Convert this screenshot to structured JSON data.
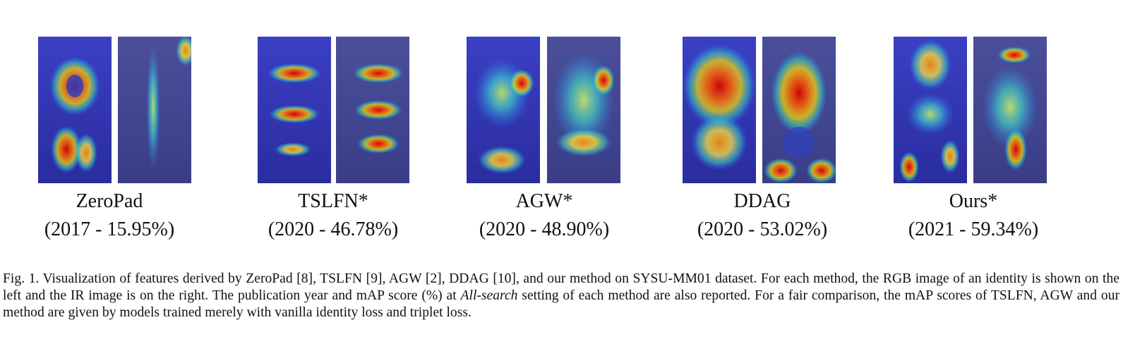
{
  "methods": [
    {
      "name": "ZeroPad",
      "score": "(2017 - 15.95%)"
    },
    {
      "name": "TSLFN*",
      "score": "(2020 - 46.78%)"
    },
    {
      "name": "AGW*",
      "score": "(2020 - 48.90%)"
    },
    {
      "name": "DDAG",
      "score": "(2020 - 53.02%)"
    },
    {
      "name": "Ours*",
      "score": "(2021 - 59.34%)"
    }
  ],
  "caption": {
    "part1": "Fig. 1.  Visualization of features derived by ZeroPad [8], TSLFN [9], AGW [2], DDAG [10], and our method on SYSU-MM01 dataset. For each method, the RGB image of an identity is shown on the left and the IR image is on the right. The publication year and mAP score (%) at ",
    "emphasis": "All-search",
    "part2": " setting of each method are also reported. For a fair comparison, the mAP scores of TSLFN, AGW and our method are given by models trained merely with vanilla identity loss and triplet loss."
  }
}
